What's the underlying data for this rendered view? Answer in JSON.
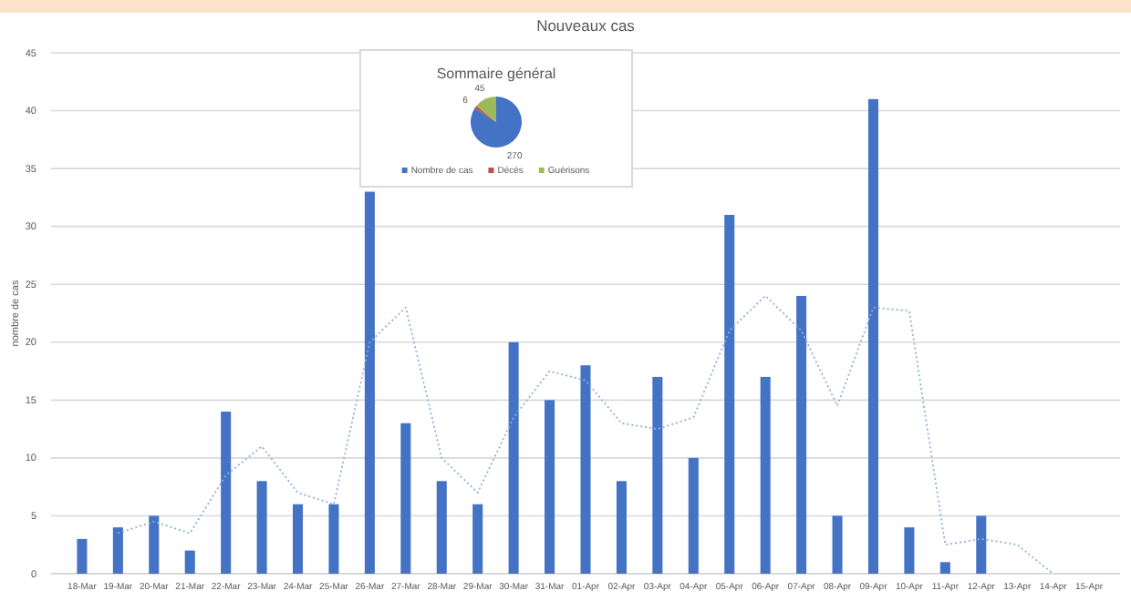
{
  "chart_data": [
    {
      "type": "bar",
      "title": "Nouveaux cas",
      "ylabel": "nombre de cas",
      "categories": [
        "18-Mar",
        "19-Mar",
        "20-Mar",
        "21-Mar",
        "22-Mar",
        "23-Mar",
        "24-Mar",
        "25-Mar",
        "26-Mar",
        "27-Mar",
        "28-Mar",
        "29-Mar",
        "30-Mar",
        "31-Mar",
        "01-Apr",
        "02-Apr",
        "03-Apr",
        "04-Apr",
        "05-Apr",
        "06-Apr",
        "07-Apr",
        "08-Apr",
        "09-Apr",
        "10-Apr",
        "11-Apr",
        "12-Apr",
        "13-Apr",
        "14-Apr",
        "15-Apr"
      ],
      "series": [
        {
          "color": "#4472c4",
          "values": [
            3,
            4,
            5,
            2,
            14,
            8,
            6,
            6,
            33,
            13,
            8,
            6,
            20,
            15,
            18,
            8,
            17,
            10,
            31,
            17,
            24,
            5,
            41,
            4,
            1,
            5,
            null,
            null,
            null
          ]
        },
        {
          "type": "line",
          "color": "#8fb0dc",
          "line_style": "dotted",
          "values": [
            null,
            3.5,
            4.5,
            3.5,
            8.5,
            11,
            7,
            6,
            20,
            23,
            10,
            7,
            13.5,
            17.5,
            16.7,
            13,
            12.5,
            13.5,
            21,
            24,
            21,
            14.5,
            23,
            22.7,
            2.5,
            3,
            2.5,
            0,
            null
          ]
        }
      ],
      "ylim": [
        0,
        45
      ],
      "yticks": [
        0,
        5,
        10,
        15,
        20,
        25,
        30,
        35,
        40,
        45
      ],
      "grid": "y"
    },
    {
      "type": "pie",
      "title": "Sommaire général",
      "categories": [
        "Nombre de cas",
        "Décès",
        "Guérisons"
      ],
      "values": [
        270,
        6,
        45
      ],
      "colors": [
        "#4472c4",
        "#c0504d",
        "#9bbb59"
      ],
      "data_labels": true,
      "legend": "bottom"
    }
  ]
}
